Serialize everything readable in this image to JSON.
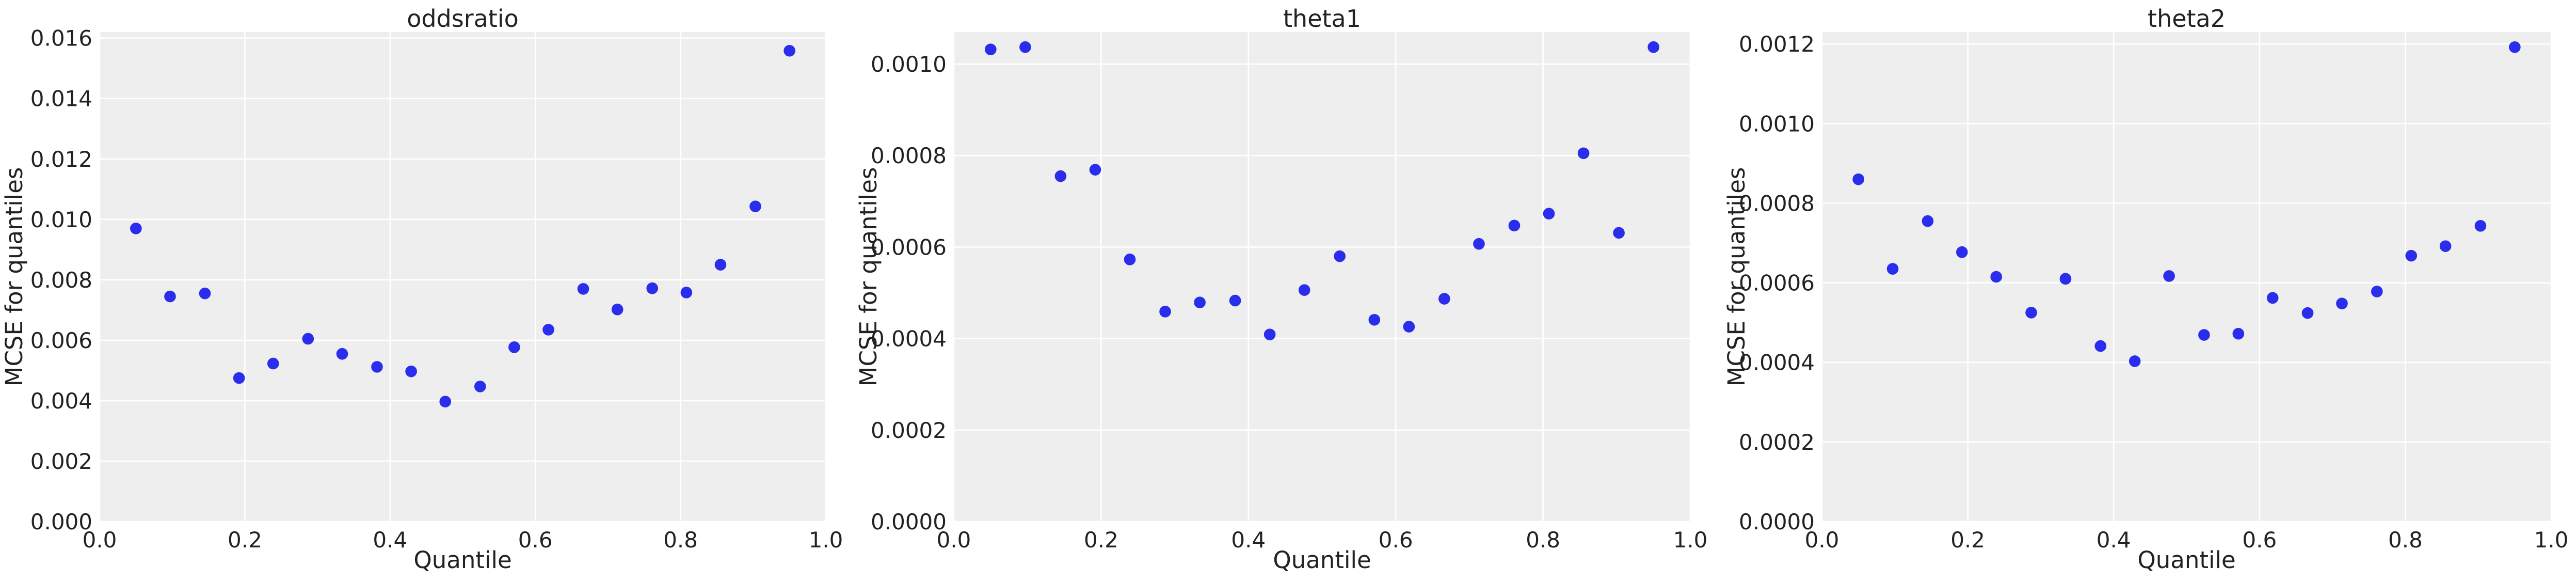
{
  "chart_data": [
    {
      "type": "scatter",
      "title": "oddsratio",
      "xlabel": "Quantile",
      "ylabel": "MCSE for quantiles",
      "xlim": [
        0,
        1
      ],
      "ylim": [
        0,
        0.0162
      ],
      "xticks": [
        "0.0",
        "0.2",
        "0.4",
        "0.6",
        "0.8",
        "1.0"
      ],
      "yticks": [
        "0.000",
        "0.002",
        "0.004",
        "0.006",
        "0.008",
        "0.010",
        "0.012",
        "0.014",
        "0.016"
      ],
      "grid": true,
      "color": "#2a2eec",
      "x": [
        0.05,
        0.097,
        0.145,
        0.192,
        0.239,
        0.287,
        0.334,
        0.382,
        0.429,
        0.476,
        0.524,
        0.571,
        0.618,
        0.666,
        0.713,
        0.761,
        0.808,
        0.855,
        0.903,
        0.95
      ],
      "y": [
        0.0097,
        0.00745,
        0.00755,
        0.00475,
        0.00523,
        0.00605,
        0.00555,
        0.00512,
        0.00497,
        0.00397,
        0.00447,
        0.00577,
        0.00635,
        0.0077,
        0.00702,
        0.00772,
        0.00758,
        0.0085,
        0.01043,
        0.01558
      ]
    },
    {
      "type": "scatter",
      "title": "theta1",
      "xlabel": "Quantile",
      "ylabel": "MCSE for quantiles",
      "xlim": [
        0,
        1
      ],
      "ylim": [
        0,
        0.00107
      ],
      "xticks": [
        "0.0",
        "0.2",
        "0.4",
        "0.6",
        "0.8",
        "1.0"
      ],
      "yticks": [
        "0.0000",
        "0.0002",
        "0.0004",
        "0.0006",
        "0.0008",
        "0.0010"
      ],
      "grid": true,
      "color": "#2a2eec",
      "x": [
        0.05,
        0.097,
        0.145,
        0.192,
        0.239,
        0.287,
        0.334,
        0.382,
        0.429,
        0.476,
        0.524,
        0.571,
        0.618,
        0.666,
        0.713,
        0.761,
        0.808,
        0.855,
        0.903,
        0.95
      ],
      "y": [
        0.001032,
        0.001037,
        0.000755,
        0.000769,
        0.000573,
        0.000459,
        0.000479,
        0.000483,
        0.000409,
        0.000506,
        0.00058,
        0.000441,
        0.000426,
        0.000487,
        0.000607,
        0.000647,
        0.000673,
        0.000805,
        0.000631,
        0.001037
      ]
    },
    {
      "type": "scatter",
      "title": "theta2",
      "xlabel": "Quantile",
      "ylabel": "MCSE for quantiles",
      "xlim": [
        0,
        1
      ],
      "ylim": [
        0,
        0.00123
      ],
      "xticks": [
        "0.0",
        "0.2",
        "0.4",
        "0.6",
        "0.8",
        "1.0"
      ],
      "yticks": [
        "0.0000",
        "0.0002",
        "0.0004",
        "0.0006",
        "0.0008",
        "0.0010",
        "0.0012"
      ],
      "grid": true,
      "color": "#2a2eec",
      "x": [
        0.05,
        0.097,
        0.145,
        0.192,
        0.239,
        0.287,
        0.334,
        0.382,
        0.429,
        0.476,
        0.524,
        0.571,
        0.618,
        0.666,
        0.713,
        0.761,
        0.808,
        0.855,
        0.903,
        0.95
      ],
      "y": [
        0.00086,
        0.000635,
        0.000755,
        0.000677,
        0.000615,
        0.000525,
        0.00061,
        0.000441,
        0.000403,
        0.000617,
        0.000469,
        0.000472,
        0.000562,
        0.000524,
        0.000548,
        0.000578,
        0.000668,
        0.000692,
        0.000743,
        0.001192
      ]
    }
  ]
}
